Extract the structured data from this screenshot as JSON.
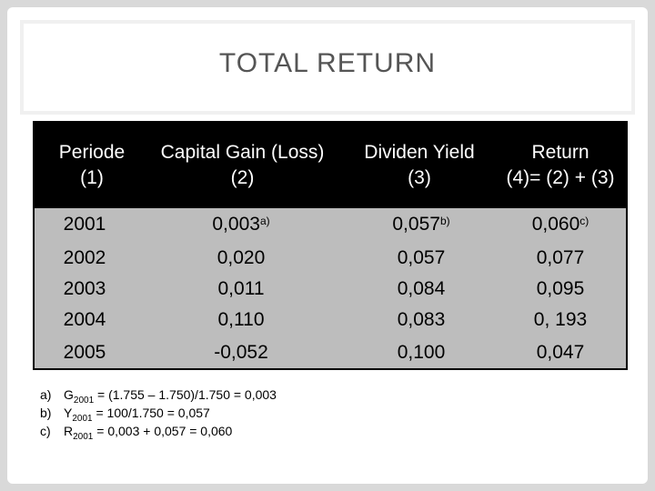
{
  "title": "TOTAL RETURN",
  "table": {
    "headers": [
      {
        "line1": "Periode",
        "line2": "(1)"
      },
      {
        "line1": "Capital Gain (Loss)",
        "line2": "(2)"
      },
      {
        "line1": "Dividen Yield",
        "line2": "(3)"
      },
      {
        "line1": "Return",
        "line2": "(4)= (2) + (3)"
      }
    ],
    "rows": [
      {
        "periode": "2001",
        "capital_gain": "0,003",
        "capital_gain_note": "a)",
        "dividen_yield": "0,057",
        "dividen_yield_note": "b)",
        "return": "0,060",
        "return_note": "c)"
      },
      {
        "periode": "2002",
        "capital_gain": "0,020",
        "dividen_yield": "0,057",
        "return": "0,077"
      },
      {
        "periode": "2003",
        "capital_gain": "0,011",
        "dividen_yield": "0,084",
        "return": "0,095"
      },
      {
        "periode": "2004",
        "capital_gain": "0,110",
        "dividen_yield": "0,083",
        "return": "0, 193"
      },
      {
        "periode": "2005",
        "capital_gain": "-0,052",
        "dividen_yield": "0,100",
        "return": "0,047"
      }
    ]
  },
  "notes": [
    {
      "mark": "a)",
      "var": "G",
      "sub": "2001",
      "rest": " = (1.755 – 1.750)/1.750 = 0,003"
    },
    {
      "mark": "b)",
      "var": "Y",
      "sub": "2001",
      "rest": " = 100/1.750 = 0,057"
    },
    {
      "mark": "c)",
      "var": "R",
      "sub": "2001",
      "rest": " = 0,003 + 0,057 = 0,060"
    }
  ],
  "colors": {
    "header_bg": "#000000",
    "body_bg": "#bdbdbd",
    "title_color": "#555555"
  }
}
